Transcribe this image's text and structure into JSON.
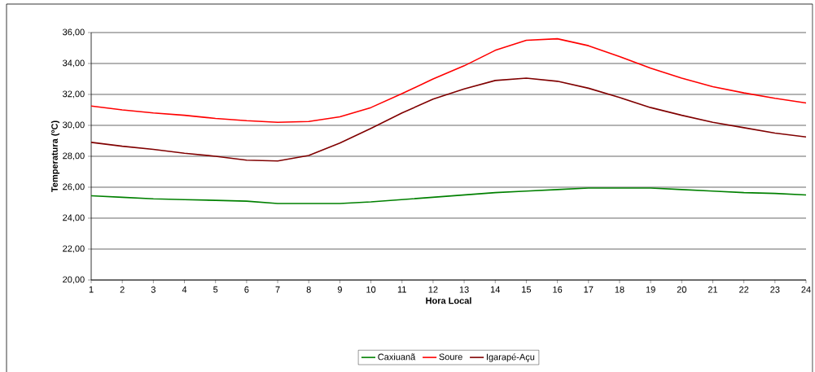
{
  "chart_data": {
    "type": "line",
    "xlabel": "Hora Local",
    "ylabel": "Temperatura (ºC)",
    "categories": [
      "1",
      "2",
      "3",
      "4",
      "5",
      "6",
      "7",
      "8",
      "9",
      "10",
      "11",
      "12",
      "13",
      "14",
      "15",
      "16",
      "17",
      "18",
      "19",
      "20",
      "21",
      "22",
      "23",
      "24"
    ],
    "series": [
      {
        "name": "Caxiuanã",
        "color": "#008000",
        "values": [
          25.45,
          25.35,
          25.25,
          25.2,
          25.15,
          25.1,
          24.95,
          24.95,
          24.95,
          25.05,
          25.2,
          25.35,
          25.5,
          25.65,
          25.75,
          25.85,
          25.95,
          25.95,
          25.95,
          25.85,
          25.75,
          25.65,
          25.6,
          25.5
        ]
      },
      {
        "name": "Soure",
        "color": "#ff0000",
        "values": [
          31.25,
          31.0,
          30.8,
          30.65,
          30.45,
          30.3,
          30.2,
          30.25,
          30.55,
          31.15,
          32.05,
          33.0,
          33.85,
          34.85,
          35.5,
          35.6,
          35.15,
          34.45,
          33.7,
          33.05,
          32.5,
          32.1,
          31.75,
          31.45
        ]
      },
      {
        "name": "Igarapé-Açu",
        "color": "#800000",
        "values": [
          28.9,
          28.65,
          28.45,
          28.2,
          28.0,
          27.75,
          27.7,
          28.05,
          28.85,
          29.8,
          30.8,
          31.7,
          32.35,
          32.9,
          33.05,
          32.85,
          32.4,
          31.8,
          31.15,
          30.65,
          30.2,
          29.85,
          29.5,
          29.25
        ]
      }
    ],
    "ylim": [
      20,
      36
    ],
    "yticks": [
      {
        "value": 20,
        "label": "20,00"
      },
      {
        "value": 22,
        "label": "22,00"
      },
      {
        "value": 24,
        "label": "24,00"
      },
      {
        "value": 26,
        "label": "26,00"
      },
      {
        "value": 28,
        "label": "28,00"
      },
      {
        "value": 30,
        "label": "30,00"
      },
      {
        "value": 32,
        "label": "32,00"
      },
      {
        "value": 34,
        "label": "34,00"
      },
      {
        "value": 36,
        "label": "36,00"
      }
    ],
    "grid": "y",
    "legend": "bottom",
    "marker": "none",
    "line_style": "solid"
  }
}
